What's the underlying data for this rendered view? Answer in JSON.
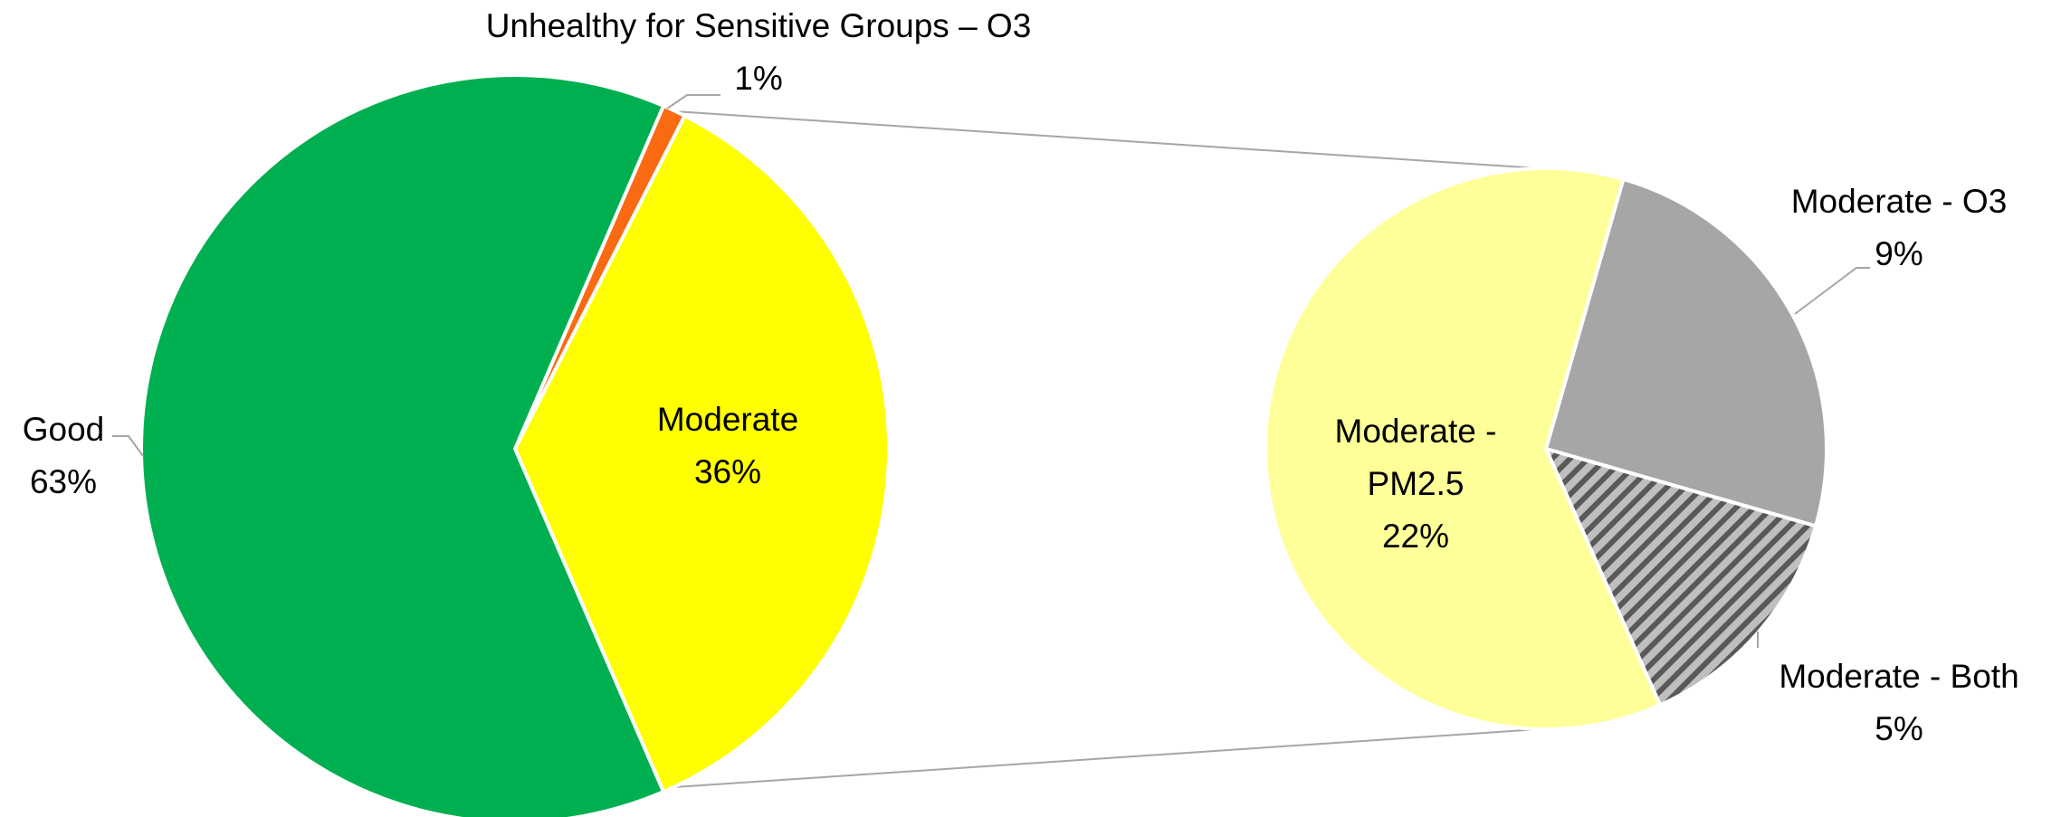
{
  "chart_data": [
    {
      "type": "pie",
      "categories": [
        "Unhealthy for Sensitive Groups – O3",
        "Moderate",
        "Good"
      ],
      "values": [
        1,
        36,
        63
      ],
      "value_labels": [
        "1%",
        "36%",
        "63%"
      ],
      "colors": [
        "#fa6a12",
        "#ffff00",
        "#00b050"
      ]
    },
    {
      "type": "pie",
      "categories": [
        "Moderate - O3",
        "Moderate - Both",
        "Moderate - PM2.5"
      ],
      "values": [
        9,
        5,
        22
      ],
      "value_labels": [
        "9%",
        "5%",
        "22%"
      ],
      "colors": [
        "#a6a6a6",
        "#a6a6a6",
        "#ffff99"
      ],
      "hatch": [
        false,
        true,
        false
      ]
    }
  ]
}
